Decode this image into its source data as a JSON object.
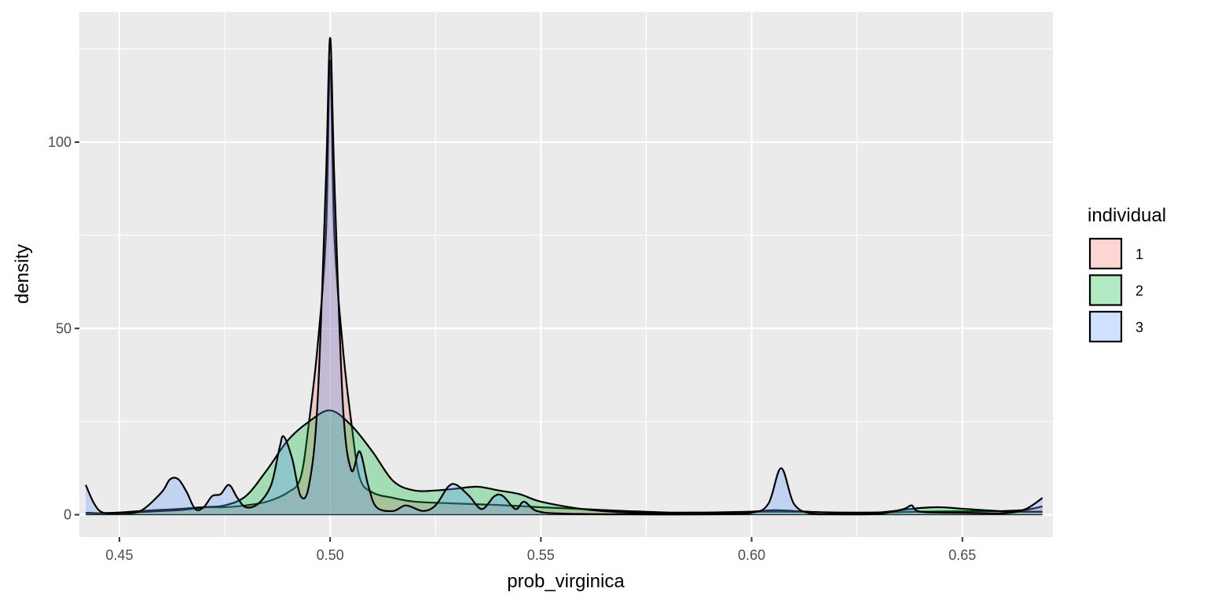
{
  "chart_data": {
    "type": "area",
    "subtype": "density",
    "xlabel": "prob_virginica",
    "ylabel": "density",
    "xlim": [
      0.4405,
      0.6715
    ],
    "ylim": [
      -6,
      135
    ],
    "x_ticks": [
      0.45,
      0.5,
      0.55,
      0.6,
      0.65
    ],
    "x_tick_labels": [
      "0.45",
      "0.50",
      "0.55",
      "0.60",
      "0.65"
    ],
    "y_ticks": [
      0,
      50,
      100
    ],
    "y_tick_labels": [
      "0",
      "50",
      "100"
    ],
    "grid": true,
    "legend": {
      "title": "individual",
      "position": "right",
      "entries": [
        "1",
        "2",
        "3"
      ]
    },
    "series": [
      {
        "name": "1",
        "color": "#F8766D",
        "points": [
          [
            0.442,
            0.5
          ],
          [
            0.445,
            0.4
          ],
          [
            0.45,
            0.6
          ],
          [
            0.455,
            1.0
          ],
          [
            0.46,
            1.3
          ],
          [
            0.465,
            1.6
          ],
          [
            0.47,
            2.0
          ],
          [
            0.475,
            2.0
          ],
          [
            0.48,
            2.5
          ],
          [
            0.485,
            3.5
          ],
          [
            0.49,
            6.0
          ],
          [
            0.493,
            10
          ],
          [
            0.495,
            25
          ],
          [
            0.497,
            45
          ],
          [
            0.499,
            75
          ],
          [
            0.5,
            122
          ],
          [
            0.501,
            75
          ],
          [
            0.503,
            45
          ],
          [
            0.505,
            25
          ],
          [
            0.507,
            10
          ],
          [
            0.51,
            6.0
          ],
          [
            0.515,
            4.5
          ],
          [
            0.52,
            3.5
          ],
          [
            0.53,
            3.0
          ],
          [
            0.54,
            2.6
          ],
          [
            0.55,
            2.0
          ],
          [
            0.56,
            1.5
          ],
          [
            0.57,
            1.0
          ],
          [
            0.58,
            0.6
          ],
          [
            0.59,
            0.6
          ],
          [
            0.6,
            0.8
          ],
          [
            0.61,
            0.8
          ],
          [
            0.62,
            0.6
          ],
          [
            0.63,
            0.6
          ],
          [
            0.64,
            0.8
          ],
          [
            0.65,
            0.9
          ],
          [
            0.66,
            1.0
          ],
          [
            0.665,
            1.3
          ],
          [
            0.669,
            2.2
          ]
        ]
      },
      {
        "name": "2",
        "color": "#00BA38",
        "points": [
          [
            0.442,
            0.5
          ],
          [
            0.445,
            0.4
          ],
          [
            0.45,
            0.5
          ],
          [
            0.455,
            0.7
          ],
          [
            0.46,
            1.0
          ],
          [
            0.465,
            1.3
          ],
          [
            0.47,
            2.0
          ],
          [
            0.475,
            2.5
          ],
          [
            0.48,
            5.0
          ],
          [
            0.485,
            12
          ],
          [
            0.49,
            20
          ],
          [
            0.495,
            25
          ],
          [
            0.5,
            28
          ],
          [
            0.505,
            24
          ],
          [
            0.51,
            17
          ],
          [
            0.515,
            9.0
          ],
          [
            0.52,
            6.5
          ],
          [
            0.525,
            6.5
          ],
          [
            0.53,
            7.0
          ],
          [
            0.535,
            7.5
          ],
          [
            0.54,
            6.5
          ],
          [
            0.545,
            5.5
          ],
          [
            0.55,
            3.5
          ],
          [
            0.56,
            1.5
          ],
          [
            0.57,
            0.6
          ],
          [
            0.58,
            0.3
          ],
          [
            0.59,
            0.3
          ],
          [
            0.6,
            0.8
          ],
          [
            0.605,
            1.2
          ],
          [
            0.61,
            1.0
          ],
          [
            0.62,
            0.5
          ],
          [
            0.63,
            0.6
          ],
          [
            0.64,
            1.8
          ],
          [
            0.645,
            2.0
          ],
          [
            0.65,
            1.6
          ],
          [
            0.66,
            0.9
          ],
          [
            0.669,
            0.8
          ]
        ]
      },
      {
        "name": "3",
        "color": "#619CFF",
        "points": [
          [
            0.442,
            8.0
          ],
          [
            0.444,
            3.0
          ],
          [
            0.446,
            0.6
          ],
          [
            0.45,
            0.4
          ],
          [
            0.455,
            1.0
          ],
          [
            0.46,
            6.0
          ],
          [
            0.462,
            9.5
          ],
          [
            0.464,
            9.5
          ],
          [
            0.466,
            6.0
          ],
          [
            0.468,
            1.5
          ],
          [
            0.47,
            2.0
          ],
          [
            0.472,
            5.0
          ],
          [
            0.474,
            5.5
          ],
          [
            0.476,
            8.0
          ],
          [
            0.478,
            4.5
          ],
          [
            0.48,
            2.0
          ],
          [
            0.483,
            3.0
          ],
          [
            0.486,
            8.0
          ],
          [
            0.488,
            18
          ],
          [
            0.489,
            21
          ],
          [
            0.491,
            15
          ],
          [
            0.493,
            5.0
          ],
          [
            0.495,
            8.0
          ],
          [
            0.497,
            30
          ],
          [
            0.499,
            90
          ],
          [
            0.5,
            128
          ],
          [
            0.501,
            90
          ],
          [
            0.503,
            30
          ],
          [
            0.505,
            12
          ],
          [
            0.507,
            17
          ],
          [
            0.509,
            8.0
          ],
          [
            0.511,
            2.0
          ],
          [
            0.515,
            1.0
          ],
          [
            0.518,
            2.5
          ],
          [
            0.522,
            1.0
          ],
          [
            0.525,
            2.5
          ],
          [
            0.528,
            7.5
          ],
          [
            0.53,
            8.0
          ],
          [
            0.533,
            5.0
          ],
          [
            0.536,
            1.5
          ],
          [
            0.539,
            5.0
          ],
          [
            0.541,
            5.0
          ],
          [
            0.544,
            1.5
          ],
          [
            0.546,
            3.5
          ],
          [
            0.549,
            1.0
          ],
          [
            0.555,
            0.3
          ],
          [
            0.57,
            0.1
          ],
          [
            0.59,
            0.1
          ],
          [
            0.6,
            0.5
          ],
          [
            0.604,
            3.0
          ],
          [
            0.607,
            12.5
          ],
          [
            0.61,
            3.0
          ],
          [
            0.614,
            0.3
          ],
          [
            0.62,
            0.1
          ],
          [
            0.63,
            0.2
          ],
          [
            0.636,
            1.5
          ],
          [
            0.638,
            2.5
          ],
          [
            0.64,
            0.8
          ],
          [
            0.65,
            0.5
          ],
          [
            0.66,
            0.4
          ],
          [
            0.665,
            1.5
          ],
          [
            0.669,
            4.5
          ]
        ]
      }
    ]
  }
}
